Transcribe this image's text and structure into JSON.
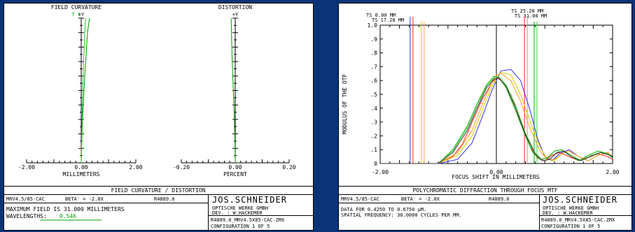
{
  "left": {
    "fc_title": "FIELD CURVATURE",
    "fc_axis_label": "+Y",
    "fc_ts_label": "T S",
    "fc_ticks": [
      "-2.00",
      "0.00",
      "2.00"
    ],
    "fc_xlabel": "MILLIMETERS",
    "dist_title": "DISTORTION",
    "dist_axis_label": "+Y",
    "dist_ticks": [
      "-0.20",
      "0.00",
      "0.20"
    ],
    "dist_xlabel": "PERCENT",
    "footer_title": "FIELD CURVATURE / DISTORTION",
    "lens_line": "MRV4.5/85-CAC",
    "beta_line": "BETA' = -2.0X",
    "ref_line": "R4889.0",
    "max_field_line": "MAXIMUM FIELD IS 31.000 MILLIMETERS",
    "wavelengths_label": "WAVELENGTHS:",
    "wavelength_value": "0.546",
    "company": "JOS.SCHNEIDER",
    "company_sub": "OPTISCHE WERKE GMBH",
    "designer": "DEV.  : W.HACKEMER",
    "file_line": "R4889.0_MRV4.5X85-CAC.ZMX",
    "config_line": "CONFIGURATION 1 OF 5"
  },
  "right": {
    "footer_title": "POLYCHROMATIC DIFFRACTION THROUGH FOCUS MTF",
    "lens_line": "MRV4.5/85-CAC",
    "beta_line": "BETA' = -2.0X",
    "ref_line": "R4889.0",
    "data_line": "DATA FOR 0.4250 TO 0.6750 µM.",
    "freq_line": "SPATIAL FREQUENCY: 30.0000 CYCLES PER MM.",
    "company": "JOS.SCHNEIDER",
    "company_sub": "OPTISCHE WERKE GMBH",
    "designer": "DEV.  : W.HACKEMER",
    "file_line": "R4889.0_MRV4.5X85-CAC.ZMX",
    "config_line": "CONFIGURATION 1 OF 5"
  },
  "chart_data": [
    {
      "type": "line",
      "title": "FIELD CURVATURE",
      "xlabel": "MILLIMETERS",
      "ylabel": "+Y",
      "xlim": [
        -2.0,
        2.0
      ],
      "ylim": [
        0,
        1
      ],
      "x_ticks": [
        "-2.00",
        "0.00",
        "2.00"
      ],
      "series": [
        {
          "name": "T",
          "color": "#00a000",
          "x": [
            0.0,
            0.02,
            0.05,
            0.09,
            0.13,
            0.18,
            0.23,
            0.3
          ],
          "y": [
            0.0,
            0.15,
            0.3,
            0.45,
            0.6,
            0.75,
            0.9,
            1.0
          ]
        },
        {
          "name": "S",
          "color": "#30c030",
          "x": [
            0.0,
            0.01,
            0.03,
            0.05,
            0.07,
            0.1,
            0.13,
            0.16
          ],
          "y": [
            0.0,
            0.15,
            0.3,
            0.45,
            0.6,
            0.75,
            0.9,
            1.0
          ]
        }
      ]
    },
    {
      "type": "line",
      "title": "DISTORTION",
      "xlabel": "PERCENT",
      "ylabel": "+Y",
      "xlim": [
        -0.2,
        0.2
      ],
      "ylim": [
        0,
        1
      ],
      "x_ticks": [
        "-0.20",
        "0.00",
        "0.20"
      ],
      "series": [
        {
          "color": "#00a000",
          "x": [
            0.0,
            -0.001,
            -0.003,
            -0.006,
            -0.009,
            -0.012,
            -0.014,
            -0.015
          ],
          "y": [
            0.0,
            0.15,
            0.3,
            0.45,
            0.6,
            0.75,
            0.9,
            1.0
          ]
        }
      ]
    },
    {
      "type": "line",
      "title": "POLYCHROMATIC DIFFRACTION THROUGH FOCUS MTF",
      "xlabel": "FOCUS SHIFT IN MILLIMETERS",
      "ylabel": "MODULUS OF THE OTF",
      "xlim": [
        -2.4,
        2.4
      ],
      "ylim": [
        0,
        1
      ],
      "x_ticks": [
        "-2.00",
        "0.00",
        "2.00"
      ],
      "y_ticks": [
        "0",
        ".1",
        ".2",
        ".3",
        ".4",
        ".5",
        ".6",
        ".7",
        ".8",
        ".9",
        "1.0"
      ],
      "grid": false,
      "field_legend": [
        {
          "label": "TS 0.00 MM",
          "x": -1.78,
          "colors": [
            "#3030ff",
            "#ff2020"
          ]
        },
        {
          "label": "TS 17.28 MM",
          "x": -1.55,
          "colors": [
            "#d8c800",
            "#ffa020"
          ]
        },
        {
          "label": "TS 25.28 MM",
          "x": 0.58,
          "colors": [
            "#ff2020",
            "#ff8080"
          ]
        },
        {
          "label": "TS 31.00 MM",
          "x": 0.78,
          "colors": [
            "#00b000",
            "#40d040"
          ]
        }
      ],
      "series": [
        {
          "color": "#3030ff",
          "x": [
            -2.4,
            -1.2,
            -0.8,
            -0.5,
            -0.3,
            -0.1,
            0.0,
            0.1,
            0.3,
            0.5,
            0.7,
            0.85,
            1.0,
            1.15,
            1.3,
            1.5,
            1.7,
            1.9,
            2.1,
            2.3,
            2.4
          ],
          "y": [
            0.0,
            0.0,
            0.03,
            0.15,
            0.33,
            0.52,
            0.6,
            0.67,
            0.68,
            0.6,
            0.38,
            0.18,
            0.05,
            0.02,
            0.07,
            0.1,
            0.05,
            0.02,
            0.06,
            0.08,
            0.04
          ]
        },
        {
          "color": "#ff2020",
          "x": [
            -2.4,
            -1.2,
            -0.9,
            -0.7,
            -0.5,
            -0.3,
            -0.1,
            0.0,
            0.1,
            0.3,
            0.5,
            0.7,
            0.85,
            1.0,
            1.15,
            1.3,
            1.5,
            1.7,
            1.9,
            2.1,
            2.3,
            2.4
          ],
          "y": [
            0.0,
            0.0,
            0.05,
            0.14,
            0.3,
            0.46,
            0.58,
            0.62,
            0.6,
            0.5,
            0.3,
            0.12,
            0.04,
            0.02,
            0.06,
            0.08,
            0.05,
            0.02,
            0.05,
            0.07,
            0.05,
            0.03
          ]
        },
        {
          "color": "#d8c800",
          "x": [
            -2.4,
            -1.2,
            -0.8,
            -0.5,
            -0.3,
            -0.1,
            0.0,
            0.1,
            0.3,
            0.5,
            0.7,
            0.9,
            1.05,
            1.2,
            1.35,
            1.5,
            1.7,
            1.9,
            2.1,
            2.3,
            2.4
          ],
          "y": [
            0.0,
            0.0,
            0.06,
            0.2,
            0.38,
            0.55,
            0.62,
            0.66,
            0.64,
            0.5,
            0.3,
            0.12,
            0.03,
            0.02,
            0.07,
            0.09,
            0.05,
            0.02,
            0.06,
            0.08,
            0.05
          ]
        },
        {
          "color": "#ffa020",
          "x": [
            -2.4,
            -1.2,
            -0.8,
            -0.5,
            -0.3,
            -0.1,
            0.0,
            0.1,
            0.3,
            0.5,
            0.7,
            0.9,
            1.05,
            1.2,
            1.35,
            1.5,
            1.7,
            1.9,
            2.1,
            2.3,
            2.4
          ],
          "y": [
            0.0,
            0.0,
            0.08,
            0.24,
            0.42,
            0.58,
            0.64,
            0.65,
            0.6,
            0.45,
            0.25,
            0.09,
            0.03,
            0.03,
            0.07,
            0.09,
            0.05,
            0.02,
            0.06,
            0.08,
            0.05
          ]
        },
        {
          "color": "#00b000",
          "x": [
            -2.4,
            -1.2,
            -0.9,
            -0.6,
            -0.4,
            -0.2,
            -0.05,
            0.05,
            0.2,
            0.4,
            0.6,
            0.75,
            0.9,
            1.05,
            1.2,
            1.35,
            1.5,
            1.7,
            1.9,
            2.1,
            2.3,
            2.4
          ],
          "y": [
            0.0,
            0.0,
            0.1,
            0.27,
            0.43,
            0.57,
            0.63,
            0.62,
            0.55,
            0.38,
            0.2,
            0.08,
            0.03,
            0.04,
            0.09,
            0.1,
            0.06,
            0.02,
            0.06,
            0.09,
            0.07,
            0.04
          ]
        },
        {
          "color": "#60e060",
          "x": [
            -2.4,
            -1.2,
            -0.9,
            -0.6,
            -0.4,
            -0.2,
            -0.05,
            0.05,
            0.2,
            0.4,
            0.6,
            0.8,
            0.95,
            1.1,
            1.25,
            1.4,
            1.55,
            1.75,
            1.95,
            2.15,
            2.35,
            2.4
          ],
          "y": [
            0.0,
            0.0,
            0.09,
            0.26,
            0.42,
            0.56,
            0.62,
            0.63,
            0.57,
            0.42,
            0.22,
            0.08,
            0.02,
            0.03,
            0.08,
            0.09,
            0.06,
            0.02,
            0.06,
            0.08,
            0.06,
            0.05
          ]
        },
        {
          "color": "#303030",
          "x": [
            -2.4,
            -1.2,
            -0.9,
            -0.6,
            -0.4,
            -0.2,
            -0.05,
            0.05,
            0.2,
            0.4,
            0.6,
            0.8,
            0.95,
            1.1,
            1.25,
            1.4,
            1.55,
            1.75,
            1.95,
            2.15,
            2.35,
            2.4
          ],
          "y": [
            0.0,
            0.0,
            0.08,
            0.24,
            0.4,
            0.55,
            0.61,
            0.62,
            0.56,
            0.4,
            0.21,
            0.07,
            0.02,
            0.03,
            0.08,
            0.09,
            0.05,
            0.02,
            0.05,
            0.08,
            0.06,
            0.05
          ]
        }
      ]
    }
  ]
}
